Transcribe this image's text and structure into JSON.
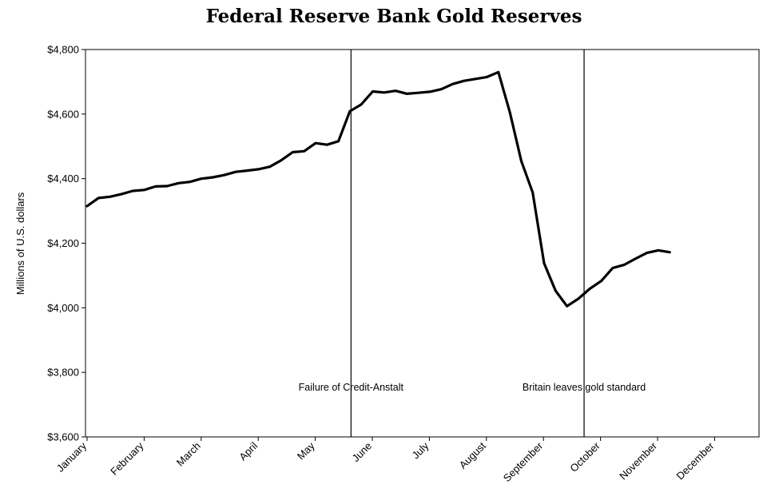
{
  "chart_data": {
    "type": "line",
    "title": "Federal Reserve Bank Gold Reserves",
    "xlabel": "",
    "ylabel": "Millions of U.S. dollars",
    "ylim": [
      3600,
      4800
    ],
    "y_ticks": [
      3600,
      3800,
      4000,
      4200,
      4400,
      4600,
      4800
    ],
    "y_tick_labels": [
      "$3,600",
      "$3,800",
      "$4,000",
      "$4,200",
      "$4,400",
      "$4,600",
      "$4,800"
    ],
    "x_ticks": [
      "January",
      "February",
      "March",
      "April",
      "May",
      "June",
      "July",
      "August",
      "September",
      "October",
      "November",
      "December"
    ],
    "grid": false,
    "legend": "none",
    "line_color": "#000000",
    "series": [
      {
        "values": [
          4315,
          4340,
          4344,
          4352,
          4362,
          4365,
          4376,
          4377,
          4386,
          4390,
          4400,
          4404,
          4411,
          4421,
          4425,
          4429,
          4437,
          4457,
          4482,
          4485,
          4510,
          4505,
          4516,
          4609,
          4630,
          4670,
          4667,
          4672,
          4663,
          4666,
          4669,
          4677,
          4693,
          4703,
          4709,
          4715,
          4730,
          4606,
          4455,
          4357,
          4138,
          4053,
          4005,
          4028,
          4059,
          4083,
          4123,
          4133,
          4152,
          4170,
          4178,
          4172
        ]
      }
    ],
    "annotations": [
      {
        "text": "Failure of Credit-Anstalt",
        "week": 23.1
      },
      {
        "text": "Britain leaves gold standard",
        "week": 43.5
      }
    ]
  }
}
